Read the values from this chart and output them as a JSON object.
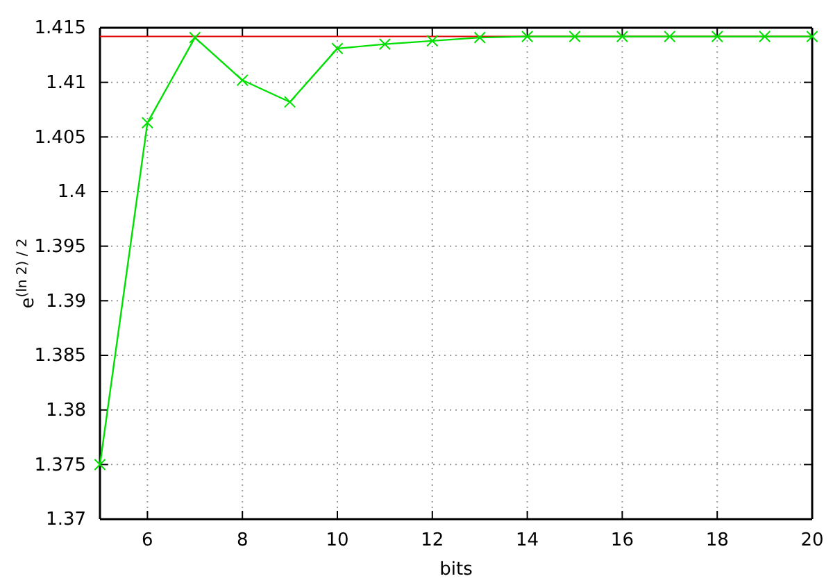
{
  "chart_data": {
    "type": "line",
    "ylabel": "e$^{(ln 2) / 2}$",
    "xlabel": "bits",
    "x": [
      5,
      6,
      7,
      8,
      9,
      10,
      11,
      12,
      13,
      14,
      15,
      16,
      17,
      18,
      19,
      20
    ],
    "series": [
      {
        "color": "#00e000",
        "values": [
          1.375,
          1.4063,
          1.4141,
          1.4102,
          1.4082,
          1.4131,
          1.4135,
          1.4138,
          1.4141,
          1.4142,
          1.4142,
          1.4142,
          1.4142,
          1.4142,
          1.4142,
          1.4142
        ]
      }
    ],
    "xlim": [
      5,
      20
    ],
    "xticks": [
      6,
      8,
      10,
      12,
      14,
      16,
      18,
      20
    ],
    "ylim": [
      1.37,
      1.415
    ],
    "yticks": [
      1.37,
      1.375,
      1.38,
      1.385,
      1.39,
      1.395,
      1.4,
      1.405,
      1.41,
      1.415
    ],
    "ref_lines": [
      {
        "axis": "y",
        "value": 1.4142,
        "color": "#e00000"
      }
    ],
    "grid": true,
    "marker": "cross",
    "line_style": "solid"
  }
}
